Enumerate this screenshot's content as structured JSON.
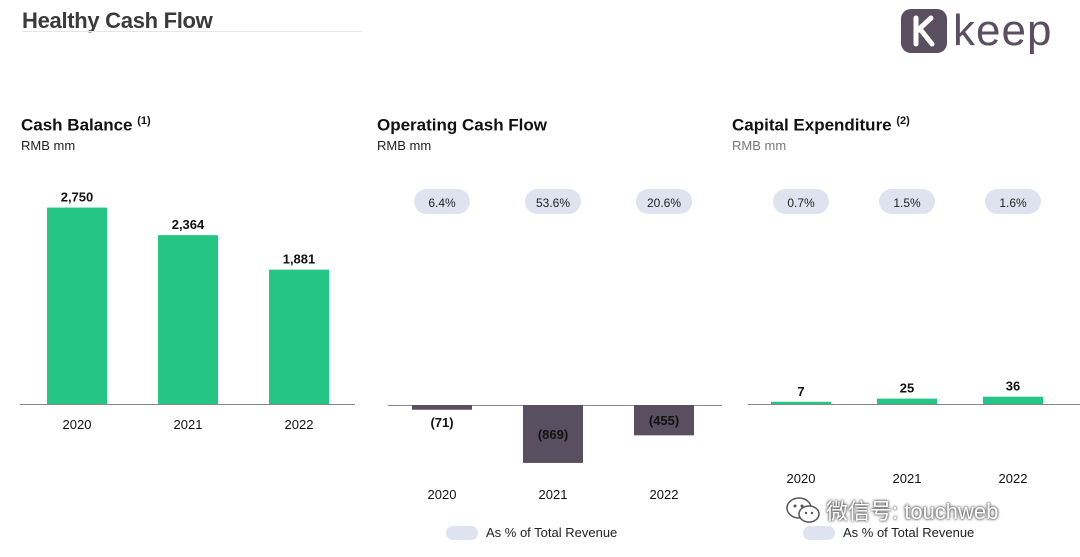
{
  "header": {
    "title": "Healthy Cash Flow",
    "logo_text": "keep",
    "logo_mark": "K"
  },
  "legend": {
    "label": "As % of Total Revenue"
  },
  "watermark": {
    "text": "微信号: touchweb",
    "icon": "wechat-icon"
  },
  "colors": {
    "positive": "#25c685",
    "negative": "#594f60",
    "pill": "#dfe3f0",
    "logo": "#5a4f60"
  },
  "chart_data": [
    {
      "type": "bar",
      "title": "Cash Balance",
      "title_note": "(1)",
      "unit": "RMB mm",
      "categories": [
        "2020",
        "2021",
        "2022"
      ],
      "values": [
        2750,
        2364,
        1881
      ],
      "value_labels": [
        "2,750",
        "2,364",
        "1,881"
      ],
      "ylim": [
        0,
        2800
      ]
    },
    {
      "type": "bar",
      "title": "Operating Cash Flow",
      "title_note": "",
      "unit": "RMB mm",
      "categories": [
        "2020",
        "2021",
        "2022"
      ],
      "values": [
        -71,
        -869,
        -455
      ],
      "value_labels": [
        "(71)",
        "(869)",
        "(455)"
      ],
      "percent_of_revenue": [
        "6.4%",
        "53.6%",
        "20.6%"
      ],
      "ylim": [
        -900,
        0
      ]
    },
    {
      "type": "bar",
      "title": "Capital Expenditure",
      "title_note": "(2)",
      "unit": "RMB mm",
      "categories": [
        "2020",
        "2021",
        "2022"
      ],
      "values": [
        7,
        25,
        36
      ],
      "value_labels": [
        "7",
        "25",
        "36"
      ],
      "percent_of_revenue": [
        "0.7%",
        "1.5%",
        "1.6%"
      ],
      "ylim": [
        0,
        900
      ]
    }
  ]
}
